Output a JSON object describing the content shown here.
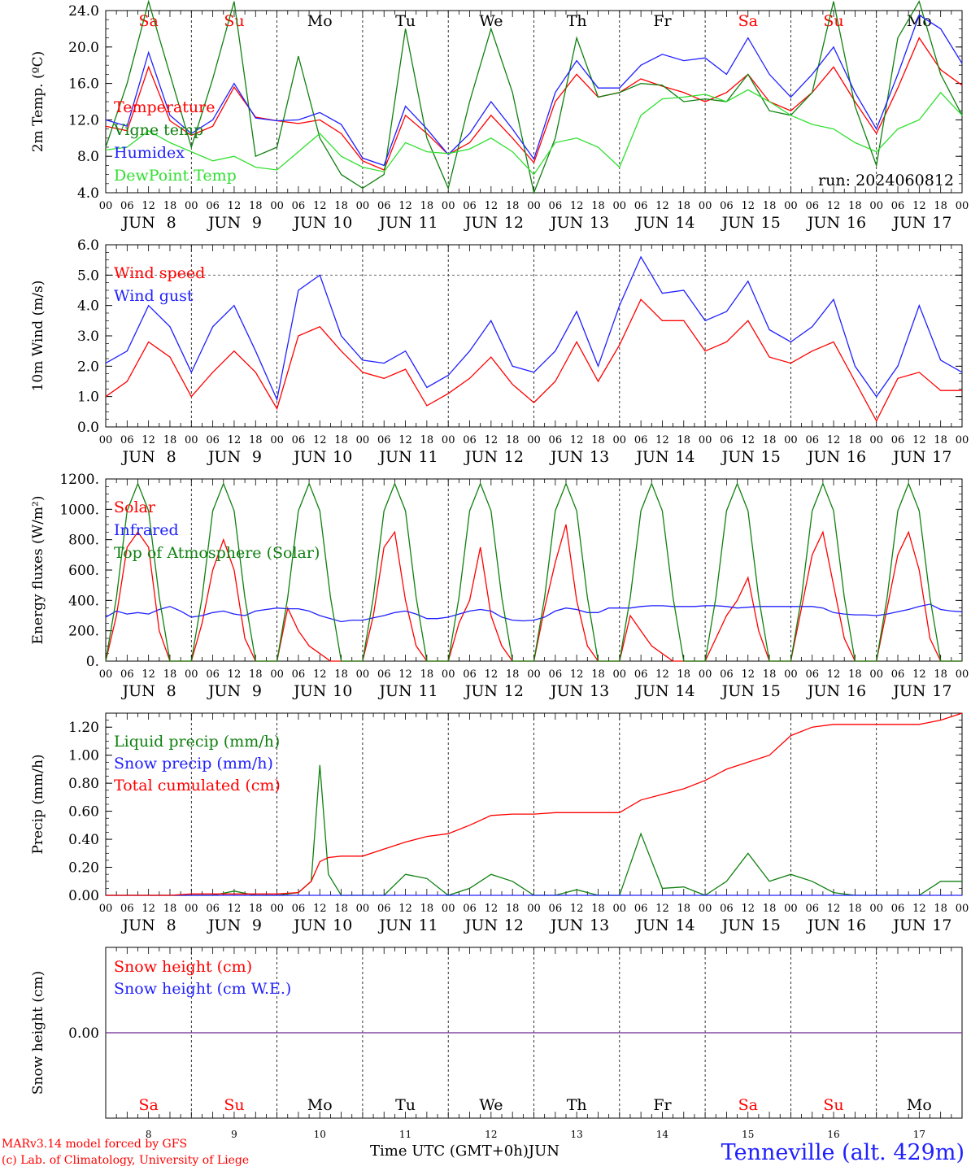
{
  "run_label": "run: 2024060812",
  "footer": {
    "model": "MARv3.14 model forced by GFS",
    "lab": "(c) Lab. of Climatology, University of Liege",
    "xlabel": "Time UTC (GMT+0h)",
    "month": "JUN",
    "site": "Tenneville (alt. 429m)"
  },
  "days": [
    {
      "abbr": "Sa",
      "date": "8",
      "weekend": true
    },
    {
      "abbr": "Su",
      "date": "9",
      "weekend": true
    },
    {
      "abbr": "Mo",
      "date": "10",
      "weekend": false
    },
    {
      "abbr": "Tu",
      "date": "11",
      "weekend": false
    },
    {
      "abbr": "We",
      "date": "12",
      "weekend": false
    },
    {
      "abbr": "Th",
      "date": "13",
      "weekend": false
    },
    {
      "abbr": "Fr",
      "date": "14",
      "weekend": false
    },
    {
      "abbr": "Sa",
      "date": "15",
      "weekend": true
    },
    {
      "abbr": "Su",
      "date": "16",
      "weekend": true
    },
    {
      "abbr": "Mo",
      "date": "17",
      "weekend": false
    }
  ],
  "hour_labels": [
    "00",
    "06",
    "12",
    "18"
  ],
  "end_hour_label": "00",
  "colors": {
    "red": "#ff0000",
    "green": "#108010",
    "blue": "#2020ff",
    "lightgreen": "#30e030",
    "purple": "#8040a0",
    "weekend": "#ff0000"
  },
  "chart_data": [
    {
      "type": "line",
      "id": "temp",
      "ylabel": "2m Temp. (ºC)",
      "ylim": [
        4,
        24
      ],
      "yticks": [
        4,
        8,
        12,
        16,
        20,
        24
      ],
      "yfmt": 1,
      "grid": "vertical",
      "x_days": [
        0,
        0.25,
        0.5,
        0.75,
        1,
        1.25,
        1.5,
        1.75,
        2,
        2.25,
        2.5,
        2.75,
        3,
        3.25,
        3.5,
        3.75,
        4,
        4.25,
        4.5,
        4.75,
        5,
        5.25,
        5.5,
        5.75,
        6,
        6.25,
        6.5,
        6.75,
        7,
        7.25,
        7.5,
        7.75,
        8,
        8.25,
        8.5,
        8.75,
        9,
        9.25,
        9.5,
        9.75,
        10
      ],
      "series": [
        {
          "name": "Temperature",
          "color": "red",
          "values": [
            11.3,
            10.8,
            17.8,
            11.9,
            10.3,
            11.3,
            15.6,
            12.3,
            11.9,
            11.6,
            12.0,
            10.5,
            7.5,
            6.5,
            12.5,
            10.5,
            8.2,
            9.5,
            12.5,
            10.0,
            7.3,
            14.0,
            17.0,
            14.5,
            15.0,
            16.5,
            15.7,
            15.0,
            14.0,
            15.0,
            17.0,
            14.0,
            13.0,
            15.0,
            17.8,
            14.0,
            10.5,
            15.5,
            21.0,
            17.5,
            15.8
          ]
        },
        {
          "name": "Vigne temp",
          "color": "green",
          "values": [
            9.0,
            16.0,
            25.0,
            17.0,
            9.0,
            16.5,
            25.0,
            8.0,
            9.0,
            19.0,
            10.0,
            6.0,
            4.5,
            6.0,
            22.0,
            10.0,
            4.5,
            14.0,
            22.0,
            15.0,
            4.0,
            10.0,
            21.0,
            14.5,
            15.0,
            16.0,
            15.8,
            14.0,
            14.3,
            14.0,
            17.0,
            13.0,
            12.5,
            15.0,
            25.0,
            13.5,
            7.0,
            21.0,
            25.0,
            17.0,
            12.5
          ]
        },
        {
          "name": "Humidex",
          "color": "blue",
          "values": [
            12.0,
            11.3,
            19.4,
            12.5,
            10.5,
            12.0,
            16.0,
            12.2,
            11.9,
            12.0,
            12.8,
            11.5,
            7.8,
            7.0,
            13.5,
            11.0,
            8.2,
            10.5,
            14.0,
            11.0,
            7.7,
            15.0,
            18.5,
            15.5,
            15.5,
            18.0,
            19.2,
            18.5,
            18.8,
            17.0,
            21.0,
            17.0,
            14.5,
            17.0,
            20.0,
            15.0,
            11.0,
            17.0,
            23.5,
            22.0,
            18.2
          ]
        },
        {
          "name": "DewPoint Temp",
          "color": "lightgreen",
          "values": [
            8.7,
            9.0,
            10.8,
            9.5,
            8.5,
            7.5,
            8.0,
            6.8,
            6.5,
            8.5,
            10.5,
            8.0,
            6.8,
            6.3,
            9.5,
            8.5,
            8.3,
            8.8,
            10.0,
            8.5,
            6.0,
            9.5,
            10.0,
            9.0,
            6.8,
            12.5,
            14.3,
            14.5,
            14.8,
            14.0,
            15.3,
            14.0,
            12.5,
            11.5,
            11.0,
            9.5,
            8.5,
            11.0,
            12.0,
            15.0,
            12.5
          ]
        }
      ]
    },
    {
      "type": "line",
      "id": "wind",
      "ylabel": "10m Wind (m/s)",
      "ylim": [
        0,
        6
      ],
      "yticks": [
        0,
        1,
        2,
        3,
        4,
        5,
        6
      ],
      "yfmt": 1,
      "grid": "vertical",
      "hline": 5,
      "x_days": [
        0,
        0.25,
        0.5,
        0.75,
        1,
        1.25,
        1.5,
        1.75,
        2,
        2.25,
        2.5,
        2.75,
        3,
        3.25,
        3.5,
        3.75,
        4,
        4.25,
        4.5,
        4.75,
        5,
        5.25,
        5.5,
        5.75,
        6,
        6.25,
        6.5,
        6.75,
        7,
        7.25,
        7.5,
        7.75,
        8,
        8.25,
        8.5,
        8.75,
        9,
        9.25,
        9.5,
        9.75,
        10
      ],
      "series": [
        {
          "name": "Wind speed",
          "color": "red",
          "values": [
            1.0,
            1.5,
            2.8,
            2.3,
            1.0,
            1.8,
            2.5,
            1.8,
            0.6,
            3.0,
            3.3,
            2.5,
            1.8,
            1.6,
            1.9,
            0.7,
            1.1,
            1.6,
            2.3,
            1.4,
            0.8,
            1.5,
            2.8,
            1.5,
            2.7,
            4.2,
            3.5,
            3.5,
            2.5,
            2.8,
            3.5,
            2.3,
            2.1,
            2.5,
            2.8,
            1.5,
            0.2,
            1.6,
            1.8,
            1.2,
            1.2
          ]
        },
        {
          "name": "Wind gust",
          "color": "blue",
          "values": [
            2.1,
            2.5,
            4.0,
            3.3,
            1.8,
            3.3,
            4.0,
            2.5,
            0.9,
            4.5,
            5.0,
            3.0,
            2.2,
            2.1,
            2.5,
            1.3,
            1.7,
            2.5,
            3.5,
            2.0,
            1.8,
            2.5,
            3.8,
            2.0,
            4.0,
            5.6,
            4.4,
            4.5,
            3.5,
            3.8,
            4.8,
            3.2,
            2.8,
            3.3,
            4.2,
            2.0,
            1.0,
            2.0,
            4.0,
            2.2,
            1.8
          ]
        }
      ]
    },
    {
      "type": "line",
      "id": "energy",
      "ylabel": "Energy fluxes (W/m²)",
      "ylim": [
        0,
        1200
      ],
      "yticks": [
        0,
        200,
        400,
        600,
        800,
        1000,
        1200
      ],
      "yfmt": 0,
      "grid": "vertical",
      "x_days": [
        0,
        0.125,
        0.25,
        0.375,
        0.5,
        0.625,
        0.75,
        0.875,
        1,
        1.125,
        1.25,
        1.375,
        1.5,
        1.625,
        1.75,
        1.875,
        2,
        2.125,
        2.25,
        2.375,
        2.5,
        2.625,
        2.75,
        2.875,
        3,
        3.125,
        3.25,
        3.375,
        3.5,
        3.625,
        3.75,
        3.875,
        4,
        4.125,
        4.25,
        4.375,
        4.5,
        4.625,
        4.75,
        4.875,
        5,
        5.125,
        5.25,
        5.375,
        5.5,
        5.625,
        5.75,
        5.875,
        6,
        6.125,
        6.25,
        6.375,
        6.5,
        6.625,
        6.75,
        6.875,
        7,
        7.125,
        7.25,
        7.375,
        7.5,
        7.625,
        7.75,
        7.875,
        8,
        8.125,
        8.25,
        8.375,
        8.5,
        8.625,
        8.75,
        8.875,
        9,
        9.125,
        9.25,
        9.375,
        9.5,
        9.625,
        9.75,
        9.875,
        10
      ],
      "series": [
        {
          "name": "Solar",
          "color": "red",
          "values": [
            0,
            300,
            750,
            850,
            750,
            200,
            0,
            0,
            0,
            250,
            600,
            800,
            600,
            150,
            0,
            0,
            0,
            350,
            200,
            100,
            50,
            0,
            0,
            0,
            0,
            300,
            750,
            850,
            400,
            100,
            0,
            0,
            0,
            250,
            400,
            750,
            300,
            100,
            0,
            0,
            0,
            350,
            650,
            900,
            400,
            100,
            0,
            0,
            0,
            300,
            200,
            100,
            50,
            0,
            0,
            0,
            0,
            150,
            300,
            400,
            550,
            200,
            0,
            0,
            0,
            350,
            700,
            850,
            500,
            150,
            0,
            0,
            0,
            350,
            700,
            850,
            600,
            150,
            0,
            0,
            0
          ]
        },
        {
          "name": "Infrared",
          "color": "blue",
          "values": [
            290,
            330,
            310,
            320,
            310,
            340,
            360,
            330,
            290,
            300,
            320,
            330,
            310,
            300,
            330,
            340,
            350,
            345,
            345,
            330,
            300,
            280,
            260,
            270,
            270,
            285,
            300,
            320,
            330,
            310,
            280,
            280,
            290,
            310,
            330,
            340,
            330,
            290,
            270,
            265,
            270,
            290,
            330,
            350,
            340,
            320,
            320,
            350,
            350,
            350,
            360,
            365,
            365,
            360,
            360,
            360,
            365,
            365,
            360,
            350,
            355,
            360,
            360,
            360,
            360,
            360,
            360,
            350,
            320,
            310,
            305,
            305,
            300,
            310,
            325,
            340,
            360,
            375,
            340,
            330,
            325
          ]
        },
        {
          "name": "Top of Atmosphere (Solar)",
          "color": "green",
          "values": [
            0,
            420,
            990,
            1170,
            990,
            420,
            0,
            0,
            0,
            420,
            990,
            1170,
            990,
            420,
            0,
            0,
            0,
            420,
            990,
            1170,
            990,
            420,
            0,
            0,
            0,
            420,
            990,
            1170,
            990,
            420,
            0,
            0,
            0,
            420,
            990,
            1170,
            990,
            420,
            0,
            0,
            0,
            420,
            990,
            1170,
            990,
            420,
            0,
            0,
            0,
            420,
            990,
            1170,
            990,
            420,
            0,
            0,
            0,
            420,
            990,
            1170,
            990,
            420,
            0,
            0,
            0,
            420,
            990,
            1170,
            990,
            420,
            0,
            0,
            0,
            420,
            990,
            1170,
            990,
            420,
            0,
            0,
            0
          ]
        }
      ]
    },
    {
      "type": "line",
      "id": "precip",
      "ylabel": "Precip (mm/h)",
      "ylim": [
        0,
        1.3
      ],
      "yticks": [
        0,
        0.2,
        0.4,
        0.6,
        0.8,
        1.0,
        1.2
      ],
      "yfmt": 2,
      "grid": "vertical",
      "x_days": [
        0,
        0.25,
        0.5,
        0.75,
        1,
        1.25,
        1.5,
        1.75,
        2,
        2.25,
        2.4,
        2.5,
        2.6,
        2.75,
        3,
        3.25,
        3.5,
        3.75,
        4,
        4.25,
        4.5,
        4.75,
        5,
        5.25,
        5.5,
        5.75,
        6,
        6.25,
        6.5,
        6.75,
        7,
        7.25,
        7.5,
        7.75,
        8,
        8.25,
        8.5,
        8.75,
        9,
        9.25,
        9.5,
        9.75,
        10
      ],
      "series": [
        {
          "name": "Liquid precip (mm/h)",
          "color": "green",
          "values": [
            0,
            0,
            0,
            0,
            0,
            0,
            0.03,
            0,
            0,
            0.02,
            0.1,
            0.93,
            0.15,
            0,
            0,
            0,
            0.15,
            0.12,
            0,
            0.05,
            0.15,
            0.1,
            0,
            0,
            0.04,
            0,
            0,
            0.44,
            0.05,
            0.06,
            0,
            0.1,
            0.3,
            0.1,
            0.15,
            0.1,
            0.02,
            0,
            0,
            0,
            0,
            0.1,
            0.1
          ]
        },
        {
          "name": "Snow precip (mm/h)",
          "color": "blue",
          "values": [
            0,
            0,
            0,
            0,
            0,
            0,
            0,
            0,
            0,
            0,
            0,
            0,
            0,
            0,
            0,
            0,
            0,
            0,
            0,
            0,
            0,
            0,
            0,
            0,
            0,
            0,
            0,
            0,
            0,
            0,
            0,
            0,
            0,
            0,
            0,
            0,
            0,
            0,
            0,
            0,
            0,
            0,
            0
          ]
        },
        {
          "name": "Total cumulated (cm)",
          "color": "red",
          "values": [
            0,
            0,
            0,
            0,
            0.01,
            0.01,
            0.01,
            0.01,
            0.01,
            0.02,
            0.1,
            0.24,
            0.27,
            0.28,
            0.28,
            0.33,
            0.38,
            0.42,
            0.44,
            0.5,
            0.57,
            0.58,
            0.58,
            0.59,
            0.59,
            0.59,
            0.59,
            0.68,
            0.72,
            0.76,
            0.82,
            0.9,
            0.95,
            1.0,
            1.14,
            1.2,
            1.22,
            1.22,
            1.22,
            1.22,
            1.22,
            1.25,
            1.3
          ]
        }
      ]
    },
    {
      "type": "line",
      "id": "snow",
      "ylabel": "Snow height (cm)",
      "ylim": [
        -1,
        1
      ],
      "yticks": [
        0
      ],
      "yfmt": 2,
      "grid": "vertical",
      "x_days": [
        0,
        10
      ],
      "series": [
        {
          "name": "Snow height (cm)",
          "color": "red",
          "values": [
            0,
            0
          ]
        },
        {
          "name": "Snow height (cm W.E.)",
          "color": "blue",
          "values": [
            0,
            0
          ]
        }
      ]
    }
  ]
}
